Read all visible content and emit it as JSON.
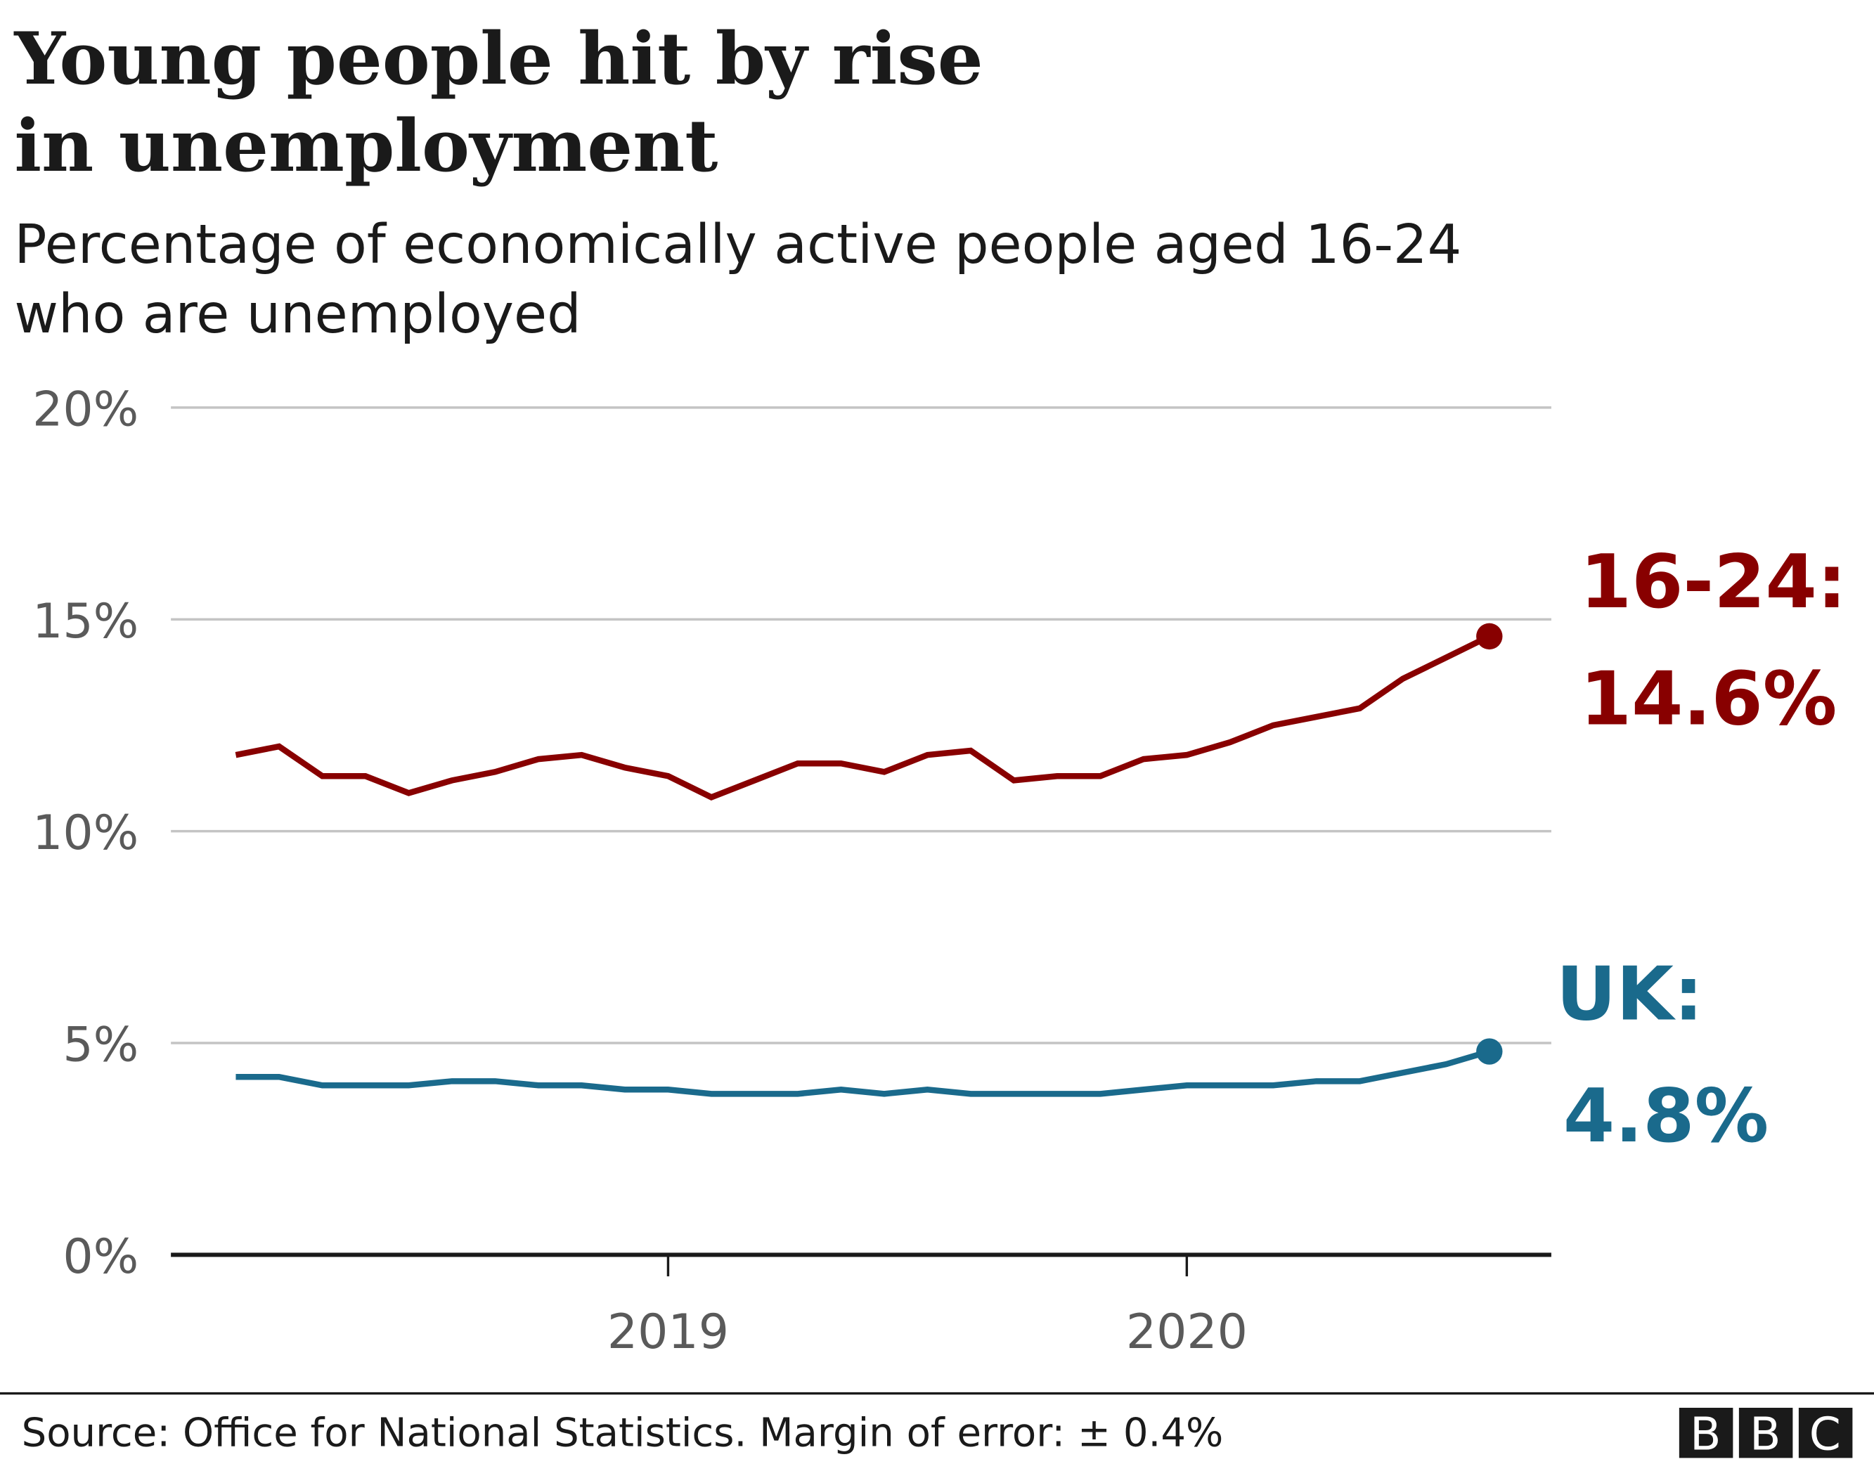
{
  "chart_data": {
    "type": "line",
    "title_lines": [
      "Young people hit by rise",
      "in unemployment"
    ],
    "subtitle_lines": [
      "Percentage of economically active people aged 16-24",
      "who are unemployed"
    ],
    "xlabel": "",
    "ylabel": "",
    "ylim": [
      0,
      20
    ],
    "yticks": [
      0,
      5,
      10,
      15,
      20
    ],
    "ytick_labels": [
      "0%",
      "5%",
      "10%",
      "15%",
      "20%"
    ],
    "xticks": [
      "2019-01",
      "2020-01"
    ],
    "xtick_labels": [
      "2019",
      "2020"
    ],
    "grid": true,
    "x": [
      "2018-03",
      "2018-04",
      "2018-05",
      "2018-06",
      "2018-07",
      "2018-08",
      "2018-09",
      "2018-10",
      "2018-11",
      "2018-12",
      "2019-01",
      "2019-02",
      "2019-03",
      "2019-04",
      "2019-05",
      "2019-06",
      "2019-07",
      "2019-08",
      "2019-09",
      "2019-10",
      "2019-11",
      "2019-12",
      "2020-01",
      "2020-02",
      "2020-03",
      "2020-04",
      "2020-05",
      "2020-06",
      "2020-07",
      "2020-08"
    ],
    "series": [
      {
        "name": "16-24",
        "end_label": [
          "16-24:",
          "14.6%"
        ],
        "color": "#880000",
        "values": [
          11.8,
          12.0,
          11.3,
          11.3,
          10.9,
          11.2,
          11.4,
          11.7,
          11.8,
          11.5,
          11.3,
          10.8,
          11.2,
          11.6,
          11.6,
          11.4,
          11.8,
          11.9,
          11.2,
          11.3,
          11.3,
          11.7,
          11.8,
          12.1,
          12.5,
          12.7,
          12.9,
          13.6,
          14.1,
          14.6
        ]
      },
      {
        "name": "UK",
        "end_label": [
          "UK:",
          "4.8%"
        ],
        "color": "#1a6a8c",
        "values": [
          4.2,
          4.2,
          4.0,
          4.0,
          4.0,
          4.1,
          4.1,
          4.0,
          4.0,
          3.9,
          3.9,
          3.8,
          3.8,
          3.8,
          3.9,
          3.8,
          3.9,
          3.8,
          3.8,
          3.8,
          3.8,
          3.9,
          4.0,
          4.0,
          4.0,
          4.1,
          4.1,
          4.3,
          4.5,
          4.8
        ]
      }
    ]
  },
  "footer": {
    "source": "Source: Office for National Statistics. Margin of error: ± 0.4%",
    "logo": "BBC"
  }
}
